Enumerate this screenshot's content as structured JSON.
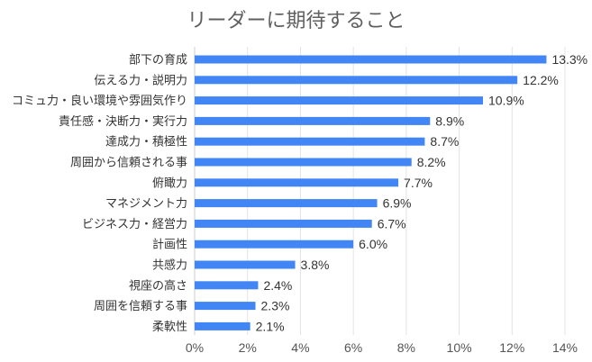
{
  "chart_data": {
    "type": "bar",
    "orientation": "horizontal",
    "title": "リーダーに期待すること",
    "xlabel": "",
    "ylabel": "",
    "categories": [
      "部下の育成",
      "伝える力・説明力",
      "コミュ力・良い環境や雰囲気作り",
      "責任感・決断力・実行力",
      "達成力・積極性",
      "周囲から信頼される事",
      "俯瞰力",
      "マネジメント力",
      "ビジネス力・経営力",
      "計画性",
      "共感力",
      "視座の高さ",
      "周囲を信頼する事",
      "柔軟性"
    ],
    "values": [
      13.3,
      12.2,
      10.9,
      8.9,
      8.7,
      8.2,
      7.7,
      6.9,
      6.7,
      6.0,
      3.8,
      2.4,
      2.3,
      2.1
    ],
    "value_labels": [
      "13.3%",
      "12.2%",
      "10.9%",
      "8.9%",
      "8.7%",
      "8.2%",
      "7.7%",
      "6.9%",
      "6.7%",
      "6.0%",
      "3.8%",
      "2.4%",
      "2.3%",
      "2.1%"
    ],
    "xlim": [
      0,
      14
    ],
    "x_ticks": [
      "0%",
      "2%",
      "4%",
      "6%",
      "8%",
      "10%",
      "12%",
      "14%"
    ],
    "bar_color": "#4285f4",
    "grid": true,
    "legend": "none"
  }
}
